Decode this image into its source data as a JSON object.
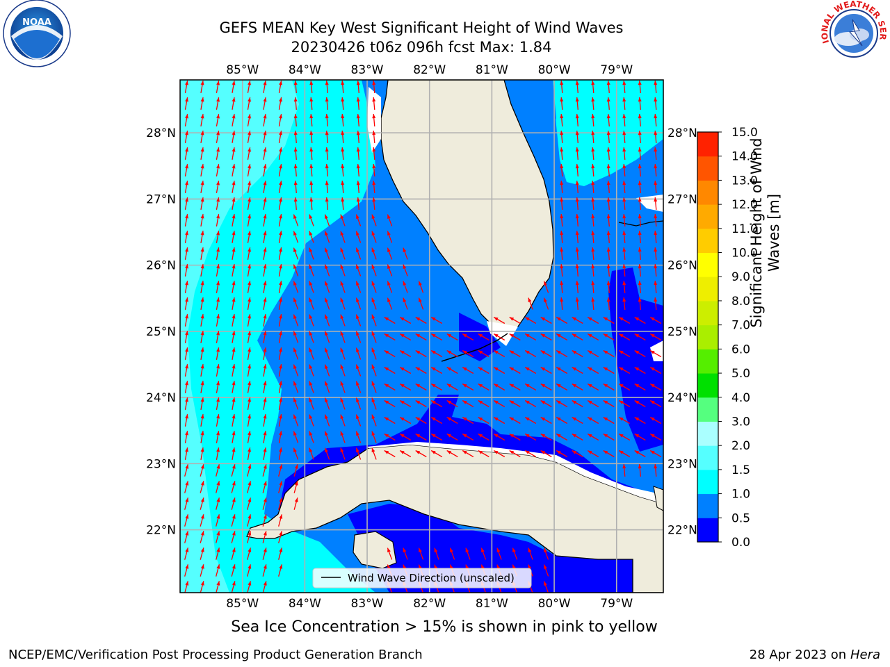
{
  "title": {
    "line1": "GEFS MEAN Key West Significant Height of Wind Waves",
    "line2": "20230426 t06z 096h fcst   Max: 1.84"
  },
  "subtitle": "Sea Ice Concentration > 15% is shown in pink to yellow",
  "footer": {
    "left": "NCEP/EMC/Verification Post Processing Product Generation Branch",
    "date": "28 Apr 2023 on ",
    "host": "Hera"
  },
  "map": {
    "lon_range": [
      -86.0,
      -78.25
    ],
    "lat_range": [
      21.05,
      28.8
    ],
    "lon_ticks": [
      {
        "value": -85,
        "label": "85°W"
      },
      {
        "value": -84,
        "label": "84°W"
      },
      {
        "value": -83,
        "label": "83°W"
      },
      {
        "value": -82,
        "label": "82°W"
      },
      {
        "value": -81,
        "label": "81°W"
      },
      {
        "value": -80,
        "label": "80°W"
      },
      {
        "value": -79,
        "label": "79°W"
      }
    ],
    "lat_ticks": [
      {
        "value": 28,
        "label": "28°N"
      },
      {
        "value": 27,
        "label": "27°N"
      },
      {
        "value": 26,
        "label": "26°N"
      },
      {
        "value": 25,
        "label": "25°N"
      },
      {
        "value": 24,
        "label": "24°N"
      },
      {
        "value": 23,
        "label": "23°N"
      },
      {
        "value": 22,
        "label": "22°N"
      }
    ],
    "land_color": "#efecdc",
    "vector_color": "#ff0000",
    "legend_label": "Wind Wave Direction (unscaled)"
  },
  "colorbar": {
    "label": "Significant Height of Wind Waves [m]",
    "levels": [
      0.0,
      0.5,
      1.0,
      1.5,
      2.0,
      3.0,
      4.0,
      5.0,
      6.0,
      7.0,
      8.0,
      9.0,
      10.0,
      11.0,
      12.0,
      13.0,
      14.0,
      15.0
    ],
    "tick_labels": [
      "0.0",
      "0.5",
      "1.0",
      "1.5",
      "2.0",
      "3.0",
      "4.0",
      "5.0",
      "6.0",
      "7.0",
      "8.0",
      "9.0",
      "10.0",
      "11.0",
      "12.0",
      "13.0",
      "14.0",
      "15.0"
    ],
    "colors": [
      "#0000ff",
      "#0080ff",
      "#00ffff",
      "#55ffff",
      "#aaffff",
      "#55ff7f",
      "#00e000",
      "#55ee00",
      "#aaee00",
      "#ccee00",
      "#eeee00",
      "#ffff00",
      "#ffcc00",
      "#ffaa00",
      "#ff8800",
      "#ff5500",
      "#ff2200"
    ]
  },
  "logos": {
    "noaa_text": "NOAA",
    "nws_text": "NATIONAL WEATHER SERVICE"
  }
}
